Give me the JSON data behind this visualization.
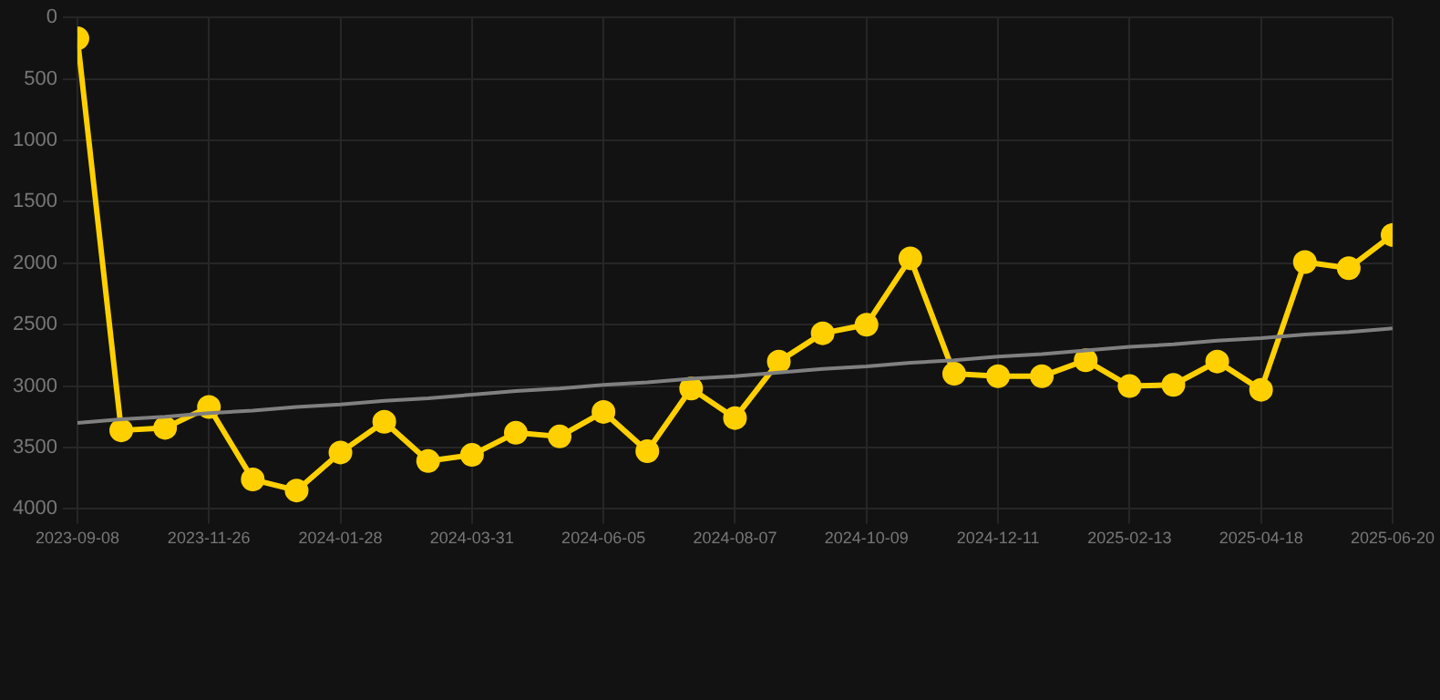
{
  "chart_data": {
    "type": "line",
    "categories": [
      "2023-09-08",
      null,
      null,
      "2023-11-26",
      null,
      null,
      "2024-01-28",
      null,
      null,
      "2024-03-31",
      null,
      null,
      "2024-06-05",
      null,
      null,
      "2024-08-07",
      null,
      null,
      "2024-10-09",
      null,
      null,
      "2024-12-11",
      null,
      null,
      "2025-02-13",
      null,
      null,
      "2025-04-18",
      null,
      null,
      "2025-06-20"
    ],
    "series": [
      {
        "color": "#ffd000",
        "marker": "circle",
        "values": [
          170,
          3360,
          3340,
          3170,
          3760,
          3850,
          3540,
          3290,
          3610,
          3560,
          3380,
          3410,
          3210,
          3530,
          3020,
          3260,
          2800,
          2570,
          2500,
          1960,
          2900,
          2920,
          2920,
          2790,
          3000,
          2990,
          2800,
          3030,
          1990,
          2040,
          1770
        ]
      },
      {
        "type": "line",
        "color": "#808080",
        "marker": "none",
        "values": [
          3300,
          3270,
          3250,
          3220,
          3200,
          3170,
          3150,
          3120,
          3100,
          3070,
          3040,
          3020,
          2990,
          2970,
          2940,
          2920,
          2890,
          2860,
          2840,
          2810,
          2790,
          2760,
          2740,
          2710,
          2680,
          2660,
          2630,
          2610,
          2580,
          2560,
          2530
        ]
      }
    ],
    "ylim": [
      4000,
      0
    ],
    "yticks": [
      0,
      500,
      1000,
      1500,
      2000,
      2500,
      3000,
      3500,
      4000
    ],
    "grid": true,
    "legend": false
  }
}
